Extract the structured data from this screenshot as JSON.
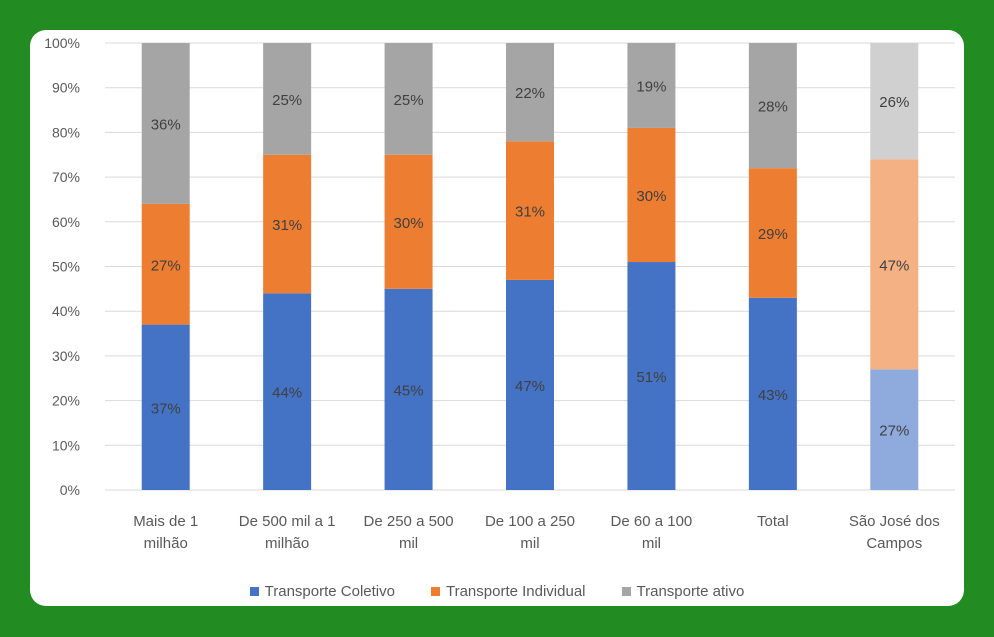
{
  "chart_data": {
    "type": "bar",
    "stacked": true,
    "categories": [
      [
        "Mais de 1",
        "milhão"
      ],
      [
        "De 500 mil a 1",
        "milhão"
      ],
      [
        "De 250 a 500",
        "mil"
      ],
      [
        "De 100 a 250",
        "mil"
      ],
      [
        "De 60 a 100",
        "mil"
      ],
      [
        "Total"
      ],
      [
        "São José dos",
        "Campos"
      ]
    ],
    "series": [
      {
        "name": "Transporte Coletivo",
        "color": "#4472c4",
        "highlight_color": "#8faadc",
        "values": [
          37,
          44,
          45,
          47,
          51,
          43,
          27
        ]
      },
      {
        "name": "Transporte Individual",
        "color": "#ed7d31",
        "highlight_color": "#f4b183",
        "values": [
          27,
          31,
          30,
          31,
          30,
          29,
          47
        ]
      },
      {
        "name": "Transporte ativo",
        "color": "#a5a5a5",
        "highlight_color": "#d0d0d0",
        "values": [
          36,
          25,
          25,
          22,
          19,
          28,
          26
        ]
      }
    ],
    "highlight_category_index": 6,
    "ylim": [
      0,
      100
    ],
    "y_ticks": [
      "0%",
      "10%",
      "20%",
      "30%",
      "40%",
      "50%",
      "60%",
      "70%",
      "80%",
      "90%",
      "100%"
    ],
    "value_suffix": "%",
    "grid": true,
    "legend": "bottom"
  }
}
